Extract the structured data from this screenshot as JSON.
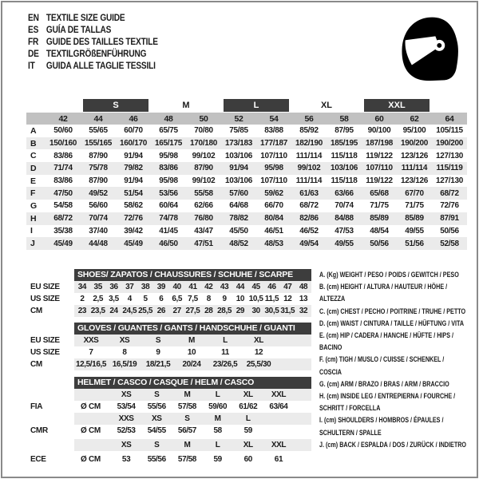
{
  "colors": {
    "dark_bar": "#3d3d3d",
    "header_row": "#c1c1c1",
    "shade_row": "#ebebeb",
    "text": "#1b1b1b",
    "frame": "#8a8a8a"
  },
  "icons": {
    "helmet": "helmet-icon"
  },
  "header": {
    "languages": [
      {
        "code": "EN",
        "title": "TEXTILE SIZE GUIDE"
      },
      {
        "code": "ES",
        "title": "GUÍA DE TALLAS"
      },
      {
        "code": "FR",
        "title": "GUIDE DES TAILLES TEXTILE"
      },
      {
        "code": "DE",
        "title": "TEXTILGRÖßENFÜHRUNG"
      },
      {
        "code": "IT",
        "title": "GUIDA ALLE TAGLIE TESSILI"
      }
    ]
  },
  "main_table": {
    "size_groups": [
      {
        "label": "",
        "span": 1,
        "dark": false
      },
      {
        "label": "S",
        "span": 2,
        "dark": true
      },
      {
        "label": "M",
        "span": 2,
        "dark": false
      },
      {
        "label": "L",
        "span": 2,
        "dark": true
      },
      {
        "label": "XL",
        "span": 2,
        "dark": false
      },
      {
        "label": "XXL",
        "span": 2,
        "dark": true
      },
      {
        "label": "",
        "span": 1,
        "dark": false
      }
    ],
    "columns": [
      "42",
      "44",
      "46",
      "48",
      "50",
      "52",
      "54",
      "56",
      "58",
      "60",
      "62",
      "64"
    ],
    "rows": [
      {
        "label": "A",
        "values": [
          "50/60",
          "55/65",
          "60/70",
          "65/75",
          "70/80",
          "75/85",
          "83/88",
          "85/92",
          "87/95",
          "90/100",
          "95/100",
          "105/115"
        ]
      },
      {
        "label": "B",
        "values": [
          "150/160",
          "155/165",
          "160/170",
          "165/175",
          "170/180",
          "173/183",
          "177/187",
          "182/190",
          "185/195",
          "187/198",
          "190/200",
          "190/200"
        ]
      },
      {
        "label": "C",
        "values": [
          "83/86",
          "87/90",
          "91/94",
          "95/98",
          "99/102",
          "103/106",
          "107/110",
          "111/114",
          "115/118",
          "119/122",
          "123/126",
          "127/130"
        ]
      },
      {
        "label": "D",
        "values": [
          "71/74",
          "75/78",
          "79/82",
          "83/86",
          "87/90",
          "91/94",
          "95/98",
          "99/102",
          "103/106",
          "107/110",
          "111/114",
          "115/119"
        ]
      },
      {
        "label": "E",
        "values": [
          "83/86",
          "87/90",
          "91/94",
          "95/98",
          "99/102",
          "103/106",
          "107/110",
          "111/114",
          "115/118",
          "119/122",
          "123/126",
          "127/130"
        ]
      },
      {
        "label": "F",
        "values": [
          "47/50",
          "49/52",
          "51/54",
          "53/56",
          "55/58",
          "57/60",
          "59/62",
          "61/63",
          "63/66",
          "65/68",
          "67/70",
          "68/72"
        ]
      },
      {
        "label": "G",
        "values": [
          "54/58",
          "56/60",
          "58/62",
          "60/64",
          "62/66",
          "64/68",
          "66/70",
          "68/72",
          "70/74",
          "71/75",
          "71/75",
          "72/76"
        ]
      },
      {
        "label": "H",
        "values": [
          "68/72",
          "70/74",
          "72/76",
          "74/78",
          "76/80",
          "78/82",
          "80/84",
          "82/86",
          "84/88",
          "85/89",
          "85/89",
          "87/91"
        ]
      },
      {
        "label": "I",
        "values": [
          "35/38",
          "37/40",
          "39/42",
          "41/45",
          "43/47",
          "45/50",
          "46/51",
          "46/52",
          "47/53",
          "48/54",
          "49/55",
          "50/56"
        ]
      },
      {
        "label": "J",
        "values": [
          "45/49",
          "44/48",
          "45/49",
          "46/50",
          "47/51",
          "48/52",
          "48/53",
          "49/54",
          "49/55",
          "50/56",
          "51/56",
          "52/58"
        ]
      }
    ]
  },
  "shoes_table": {
    "title": "SHOES/ ZAPATOS / CHAUSSURES / SCHUHE / SCARPE",
    "rows": [
      {
        "label": "EU SIZE",
        "shaded": true,
        "values": [
          "34",
          "35",
          "36",
          "37",
          "38",
          "39",
          "40",
          "41",
          "42",
          "43",
          "44",
          "45",
          "46",
          "47",
          "48"
        ]
      },
      {
        "label": "US SIZE",
        "shaded": false,
        "values": [
          "2",
          "2,5",
          "3,5",
          "4",
          "5",
          "6",
          "6,5",
          "7,5",
          "8",
          "9",
          "10",
          "10,5",
          "11,5",
          "12",
          "13"
        ]
      },
      {
        "label": "CM",
        "shaded": true,
        "values": [
          "23",
          "23,5",
          "24",
          "24,5",
          "25,5",
          "26",
          "27",
          "27,5",
          "28",
          "28,5",
          "29",
          "30",
          "30,5",
          "31,5",
          "32"
        ]
      }
    ]
  },
  "gloves_table": {
    "title": "GLOVES / GUANTES / GANTS / HANDSCHUHE / GUANTI",
    "rows": [
      {
        "label": "EU SIZE",
        "shaded": true,
        "values": [
          "XXS",
          "XS",
          "S",
          "M",
          "L",
          "XL"
        ]
      },
      {
        "label": "US SIZE",
        "shaded": false,
        "values": [
          "7",
          "8",
          "9",
          "10",
          "11",
          "12"
        ]
      },
      {
        "label": "CM",
        "shaded": true,
        "values": [
          "12,5/16,5",
          "16,5/19",
          "18/21,5",
          "20/24",
          "23/26,5",
          "25,5/30"
        ]
      }
    ]
  },
  "helmet_table": {
    "title": "HELMET / CASCO / CASQUE / HELM / CASCO",
    "rows": [
      {
        "label": "",
        "unit": "",
        "shaded": true,
        "gap": false,
        "values": [
          "XS",
          "S",
          "M",
          "L",
          "XL",
          "XXL"
        ]
      },
      {
        "label": "FIA",
        "unit": "Ø CM",
        "shaded": false,
        "gap": false,
        "values": [
          "53/54",
          "55/56",
          "57/58",
          "59/60",
          "61/62",
          "63/64"
        ]
      },
      {
        "label": "",
        "unit": "",
        "shaded": true,
        "gap": false,
        "values": [
          "XXS",
          "XS",
          "S",
          "M",
          "L",
          ""
        ]
      },
      {
        "label": "CMR",
        "unit": "Ø CM",
        "shaded": false,
        "gap": false,
        "values": [
          "52/53",
          "54/55",
          "56/57",
          "58",
          "59",
          ""
        ]
      },
      {
        "label": "",
        "unit": "",
        "shaded": true,
        "gap": true,
        "values": [
          "XS",
          "S",
          "M",
          "L",
          "XL",
          "XXL"
        ]
      },
      {
        "label": "ECE",
        "unit": "Ø CM",
        "shaded": false,
        "gap": true,
        "values": [
          "53",
          "55/56",
          "57/58",
          "59",
          "60",
          "61"
        ]
      }
    ]
  },
  "legend": {
    "items": [
      "A. (Kg) WEIGHT / PESO / POIDS / GEWITCH / PESO",
      "B. (cm) HEIGHT / ALTURA / HAUTEUR / HÖHE / ALTEZZA",
      "C. (cm) CHEST / PECHO / POITRINE / TRUHE / PETTO",
      "D. (cm) WAIST / CINTURA / TAILLE / HÜFTUNG / VITA",
      "E. (cm) HIP / CADERA / HANCHE / HÜFTE / HIPS /  BACINO",
      "F. (cm) TIGH / MUSLO / CUISSE / SCHENKEL / COSCIA",
      "G. (cm) ARM  / BRAZO / BRAS / ARM / BRACCIO",
      "H. (cm) INSIDE LEG / ENTREPIERNA / FOURCHE / SCHRITT / FORCELLA",
      "I.  (cm) SHOULDERS / HOMBROS / ÉPAULES / SCHULTERN / SPALLE",
      "J. (cm) BACK / ESPALDA / DOS / ZURÜCK / INDIETRO"
    ]
  }
}
